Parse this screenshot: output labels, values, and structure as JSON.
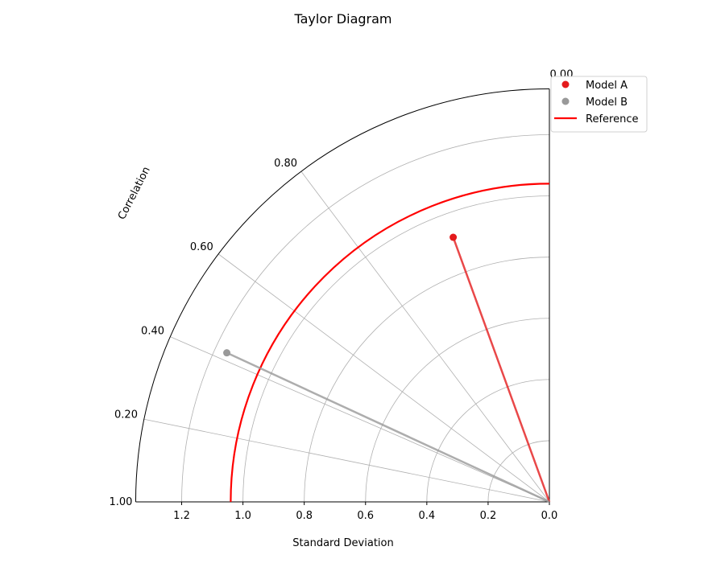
{
  "chart_data": {
    "type": "scatter",
    "title": "Taylor Diagram",
    "xlabel": "Standard Deviation",
    "angular_label": "Correlation",
    "std_range": [
      0,
      1.35
    ],
    "std_ticks": [
      "1.2",
      "1.0",
      "0.8",
      "0.6",
      "0.4",
      "0.2",
      "0.0"
    ],
    "std_tick_values": [
      1.2,
      1.0,
      0.8,
      0.6,
      0.4,
      0.2,
      0.0
    ],
    "std_grid": [
      0.2,
      0.4,
      0.6,
      0.8,
      1.0,
      1.2
    ],
    "corr_ticks": [
      "0.00",
      "0.20",
      "0.40",
      "0.60",
      "0.80",
      "1.00"
    ],
    "corr_tick_values": [
      0.0,
      0.2,
      0.4,
      0.6,
      0.8,
      1.0
    ],
    "grid": true,
    "legend_position": "top-right",
    "series": [
      {
        "name": "Model A",
        "std": 0.92,
        "correlation": 0.94,
        "color": "#e41a1c"
      },
      {
        "name": "Model B",
        "std": 1.16,
        "correlation": 0.42,
        "color": "#999999"
      }
    ],
    "reference": {
      "name": "Reference",
      "std": 1.04,
      "color": "#ff0000"
    }
  }
}
